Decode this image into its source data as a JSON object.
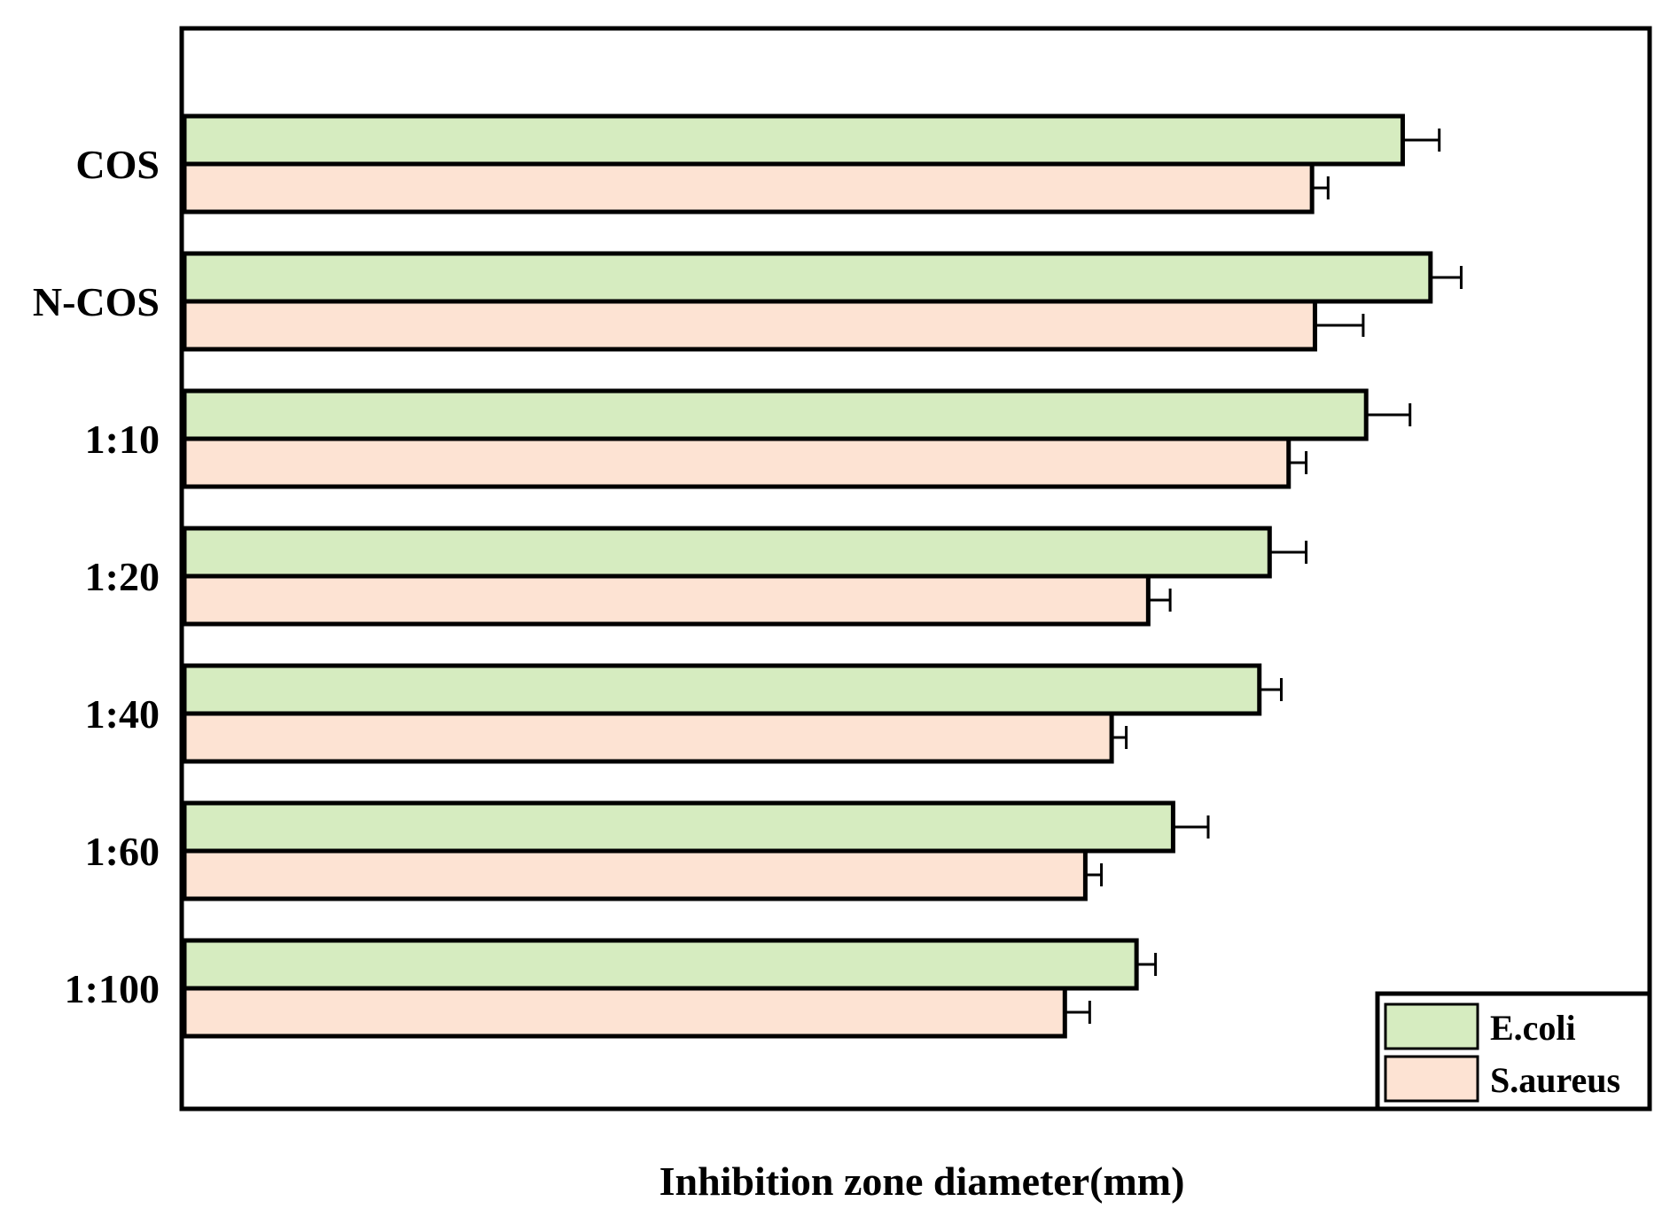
{
  "chart_data": {
    "type": "bar",
    "orientation": "horizontal",
    "title": "",
    "xlabel": "Inhibition zone diameter(mm)",
    "ylabel": "",
    "categories": [
      "COS",
      "N-COS",
      "1:10",
      "1:20",
      "1:40",
      "1:60",
      "1:100"
    ],
    "xlim": [
      0,
      100
    ],
    "grid": false,
    "x_ticks_shown": false,
    "legend_position": "bottom-right",
    "series": [
      {
        "name": "E.coli",
        "color": "#d6ecc0",
        "values": [
          83.3,
          85.2,
          80.8,
          74.2,
          73.5,
          67.6,
          65.1
        ],
        "errors": [
          2.5,
          2.1,
          3.0,
          2.5,
          1.5,
          2.4,
          1.3
        ]
      },
      {
        "name": "S.aureus",
        "color": "#fde3d3",
        "values": [
          77.1,
          77.3,
          75.5,
          65.9,
          63.4,
          61.6,
          60.2
        ],
        "errors": [
          1.1,
          3.3,
          1.2,
          1.5,
          1.0,
          1.1,
          1.7
        ]
      }
    ]
  }
}
